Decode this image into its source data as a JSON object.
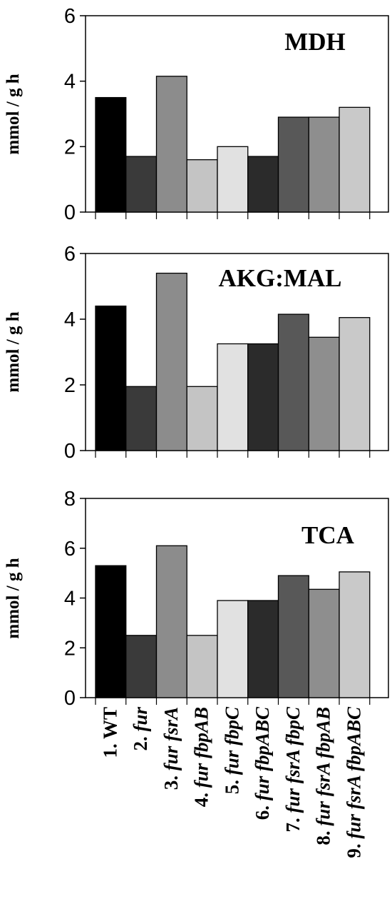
{
  "chart_data": [
    {
      "type": "bar",
      "title": "MDH",
      "ylabel": "mmol / g h",
      "ylim": [
        0,
        6
      ],
      "yticks": [
        0,
        2,
        4,
        6
      ],
      "categories": [
        "1. WT",
        "2. fur",
        "3. fur fsrA",
        "4. fur fbpAB",
        "5. fur fbpC",
        "6. fur fbpABC",
        "7. fur fsrA fbpC",
        "8. fur fsrA fbpAB",
        "9. fur fsrA fbpABC"
      ],
      "values": [
        3.5,
        1.7,
        4.15,
        1.6,
        2.0,
        1.7,
        2.9,
        2.9,
        3.2
      ]
    },
    {
      "type": "bar",
      "title": "AKG:MAL",
      "ylabel": "mmol / g h",
      "ylim": [
        0,
        6
      ],
      "yticks": [
        0,
        2,
        4,
        6
      ],
      "categories": [
        "1. WT",
        "2. fur",
        "3. fur fsrA",
        "4. fur fbpAB",
        "5. fur fbpC",
        "6. fur fbpABC",
        "7. fur fsrA fbpC",
        "8. fur fsrA fbpAB",
        "9. fur fsrA fbpABC"
      ],
      "values": [
        4.4,
        1.95,
        5.4,
        1.95,
        3.25,
        3.25,
        4.15,
        3.45,
        4.05
      ]
    },
    {
      "type": "bar",
      "title": "TCA",
      "ylabel": "mmol / g h",
      "ylim": [
        0,
        8
      ],
      "yticks": [
        0,
        2,
        4,
        6,
        8
      ],
      "categories": [
        "1. WT",
        "2. fur",
        "3. fur fsrA",
        "4. fur fbpAB",
        "5. fur fbpC",
        "6. fur fbpABC",
        "7. fur fsrA fbpC",
        "8. fur fsrA fbpAB",
        "9. fur fsrA fbpABC"
      ],
      "values": [
        5.3,
        2.5,
        6.1,
        2.5,
        3.9,
        3.9,
        4.9,
        4.35,
        5.05
      ]
    }
  ],
  "bar_colors": [
    "#000000",
    "#3a3a3a",
    "#8c8c8c",
    "#c4c4c4",
    "#e1e1e1",
    "#2b2b2b",
    "#585858",
    "#8e8e8e",
    "#c9c9c9"
  ],
  "category_labels": [
    {
      "prefix": "1. ",
      "italic": "",
      "roman": "WT"
    },
    {
      "prefix": "2. ",
      "italic": "fur",
      "roman": ""
    },
    {
      "prefix": "3. ",
      "italic": "fur fsrA",
      "roman": ""
    },
    {
      "prefix": "4. ",
      "italic": "fur fbpAB",
      "roman": ""
    },
    {
      "prefix": "5. ",
      "italic": "fur fbpC",
      "roman": ""
    },
    {
      "prefix": "6. ",
      "italic": "fur fbpABC",
      "roman": ""
    },
    {
      "prefix": "7. ",
      "italic": "fur fsrA fbpC",
      "roman": ""
    },
    {
      "prefix": "8. ",
      "italic": "fur fsrA fbpAB",
      "roman": ""
    },
    {
      "prefix": "9. ",
      "italic": "fur fsrA fbpABC",
      "roman": ""
    }
  ]
}
